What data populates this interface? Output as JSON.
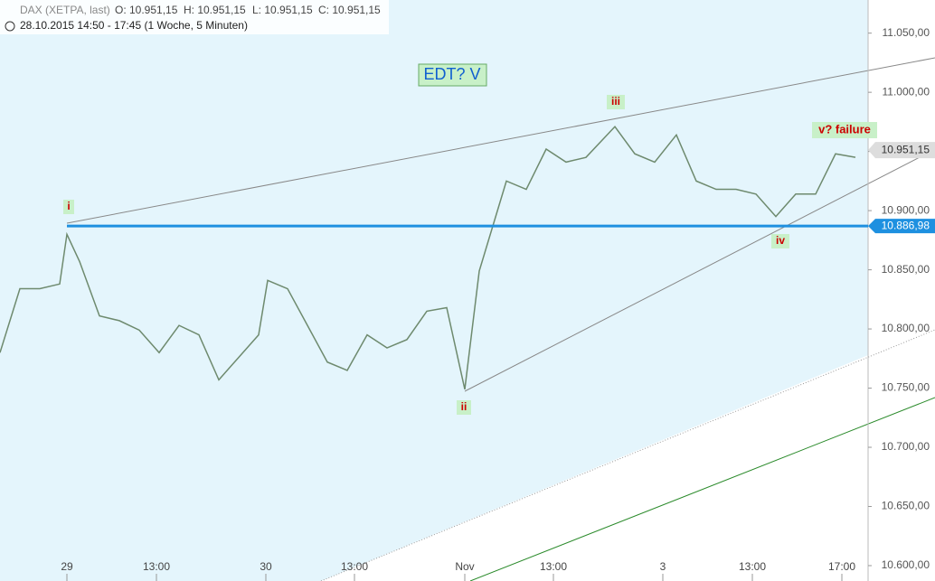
{
  "chart_data": {
    "type": "line",
    "header": {
      "symbol": "DAX (XETPA, last)",
      "open": "O: 10.951,15",
      "high": "H: 10.951,15",
      "low": "L: 10.951,15",
      "close": "C: 10.951,15",
      "period": "28.10.2015 14:50 - 17:45 (1 Woche, 5 Minuten)"
    },
    "title": "EDT? V",
    "annotations": [
      "i",
      "ii",
      "iii",
      "iv",
      "v? failure"
    ],
    "x": [
      0,
      22,
      44,
      66,
      74,
      88,
      110,
      132,
      154,
      176,
      198,
      220,
      242,
      264,
      286,
      296,
      318,
      340,
      362,
      384,
      406,
      428,
      450,
      472,
      494,
      514,
      530,
      545,
      560,
      582,
      604,
      626,
      648,
      680,
      702,
      724,
      748,
      770,
      792,
      814,
      836,
      858,
      880,
      902,
      924,
      946
    ],
    "series": [
      {
        "name": "DAX",
        "color": "#6e8a6e",
        "values": [
          10780,
          10834,
          10834,
          10838,
          10880,
          10857,
          10811,
          10807,
          10799,
          10780,
          10803,
          10795,
          10757,
          10776,
          10795,
          10841,
          10834,
          10803,
          10772,
          10765,
          10795,
          10784,
          10791,
          10815,
          10818,
          10749,
          10849,
          10887,
          10925,
          10918,
          10952,
          10941,
          10945,
          10971,
          10948,
          10941,
          10964,
          10925,
          10918,
          10918,
          10914,
          10895,
          10914,
          10914,
          10948,
          10945
        ]
      }
    ],
    "xlim": [
      0,
      960
    ],
    "xticks": [
      {
        "value": 74,
        "label": "29"
      },
      {
        "value": 173,
        "label": "13:00"
      },
      {
        "value": 294,
        "label": "30"
      },
      {
        "value": 392,
        "label": "13:00"
      },
      {
        "value": 514,
        "label": "Nov"
      },
      {
        "value": 612,
        "label": "13:00"
      },
      {
        "value": 733,
        "label": "3"
      },
      {
        "value": 832,
        "label": "13:00"
      },
      {
        "value": 931,
        "label": "17:00"
      }
    ],
    "ylim": [
      10587,
      11078
    ],
    "yticks": [
      {
        "value": 10600,
        "label": "10.600,00"
      },
      {
        "value": 10650,
        "label": "10.650,00"
      },
      {
        "value": 10700,
        "label": "10.700,00"
      },
      {
        "value": 10750,
        "label": "10.750,00"
      },
      {
        "value": 10800,
        "label": "10.800,00"
      },
      {
        "value": 10850,
        "label": "10.850,00"
      },
      {
        "value": 10900,
        "label": "10.900,00"
      },
      {
        "value": 10950,
        "label": "10.950,00"
      },
      {
        "value": 11000,
        "label": "11.000,00"
      },
      {
        "value": 11050,
        "label": "11.050,00"
      }
    ],
    "hline": {
      "value": 10886.98,
      "label": "10.886,98",
      "color": "#1e90e0"
    },
    "last_price": {
      "value": 10951.15,
      "label": "10.951,15"
    }
  }
}
